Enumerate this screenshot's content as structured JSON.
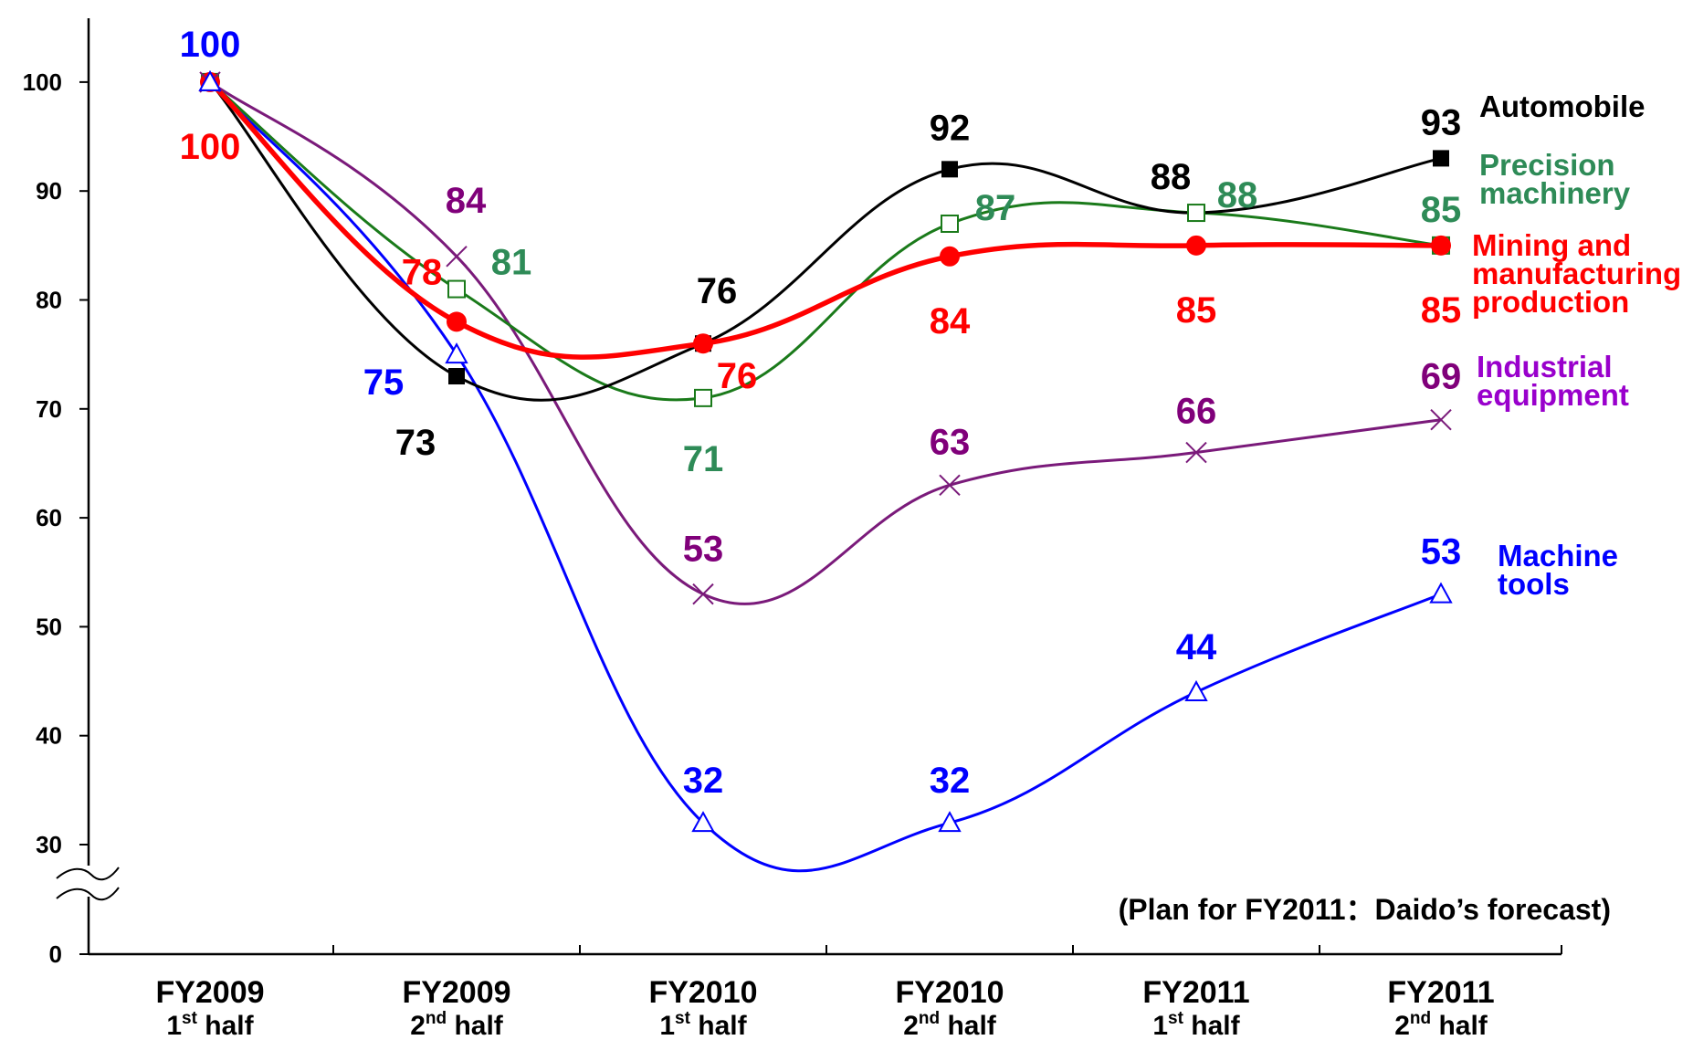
{
  "chart_data": {
    "type": "line",
    "categories": [
      {
        "year": "FY2009",
        "ord": "1",
        "suffix": "st",
        "half": " half"
      },
      {
        "year": "FY2009",
        "ord": "2",
        "suffix": "nd",
        "half": " half"
      },
      {
        "year": "FY2010",
        "ord": "1",
        "suffix": "st",
        "half": " half"
      },
      {
        "year": "FY2010",
        "ord": "2",
        "suffix": "nd",
        "half": " half"
      },
      {
        "year": "FY2011",
        "ord": "1",
        "suffix": "st",
        "half": " half"
      },
      {
        "year": "FY2011",
        "ord": "2",
        "suffix": "nd",
        "half": " half"
      }
    ],
    "yticks": [
      0,
      30,
      40,
      50,
      60,
      70,
      80,
      90,
      100
    ],
    "ylim": [
      0,
      100
    ],
    "axis_break": true,
    "note": "(Plan for FY2011：Daido’s forecast)",
    "series": [
      {
        "name": "Automobile",
        "legend_lines": [
          "Automobile"
        ],
        "color": "#000000",
        "marker": "filled-square",
        "values": [
          100,
          73,
          76,
          92,
          88,
          93
        ]
      },
      {
        "name": "Precision machinery",
        "legend_lines": [
          "Precision",
          "machinery"
        ],
        "color": "#2e8b57",
        "line_color": "#1a7a1a",
        "marker": "open-square",
        "values": [
          100,
          81,
          71,
          87,
          88,
          85
        ]
      },
      {
        "name": "Mining and manufacturing production",
        "legend_lines": [
          "Mining and",
          "manufacturing",
          "production"
        ],
        "color": "#ff0000",
        "marker": "filled-circle",
        "values": [
          100,
          78,
          76,
          84,
          85,
          85
        ]
      },
      {
        "name": "Industrial equipment",
        "legend_lines": [
          "Industrial",
          "equipment"
        ],
        "color": "#8000a0",
        "line_color": "#7a1a7a",
        "marker": "x",
        "values": [
          100,
          84,
          53,
          63,
          66,
          69
        ]
      },
      {
        "name": "Machine tools",
        "legend_lines": [
          "Machine",
          "tools"
        ],
        "color": "#0000ff",
        "marker": "open-triangle",
        "values": [
          100,
          75,
          32,
          32,
          44,
          53
        ]
      }
    ]
  }
}
